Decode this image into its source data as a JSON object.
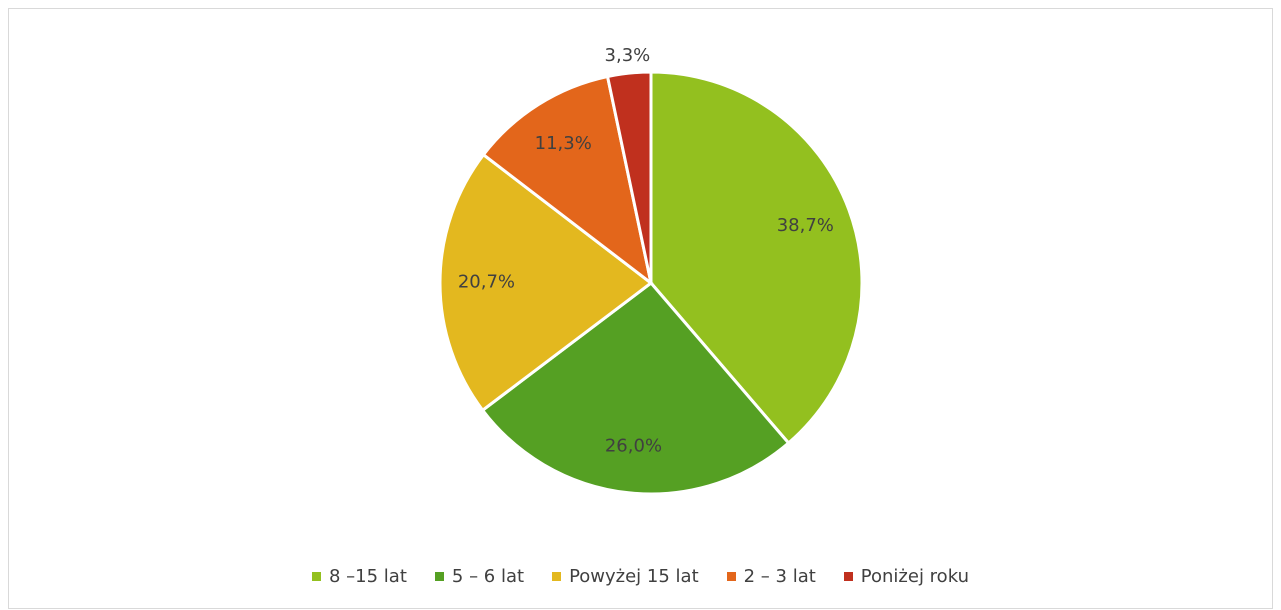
{
  "chart_data": {
    "type": "pie",
    "categories": [
      "8 –15 lat",
      "5 – 6 lat",
      "Powyżej 15 lat",
      "2 – 3 lat",
      "Poniżej roku"
    ],
    "values": [
      38.7,
      26.0,
      20.7,
      11.3,
      3.3
    ],
    "value_labels": [
      "38,7%",
      "26,0%",
      "20,7%",
      "11,3%",
      "3,3%"
    ],
    "colors": [
      "#93c01f",
      "#55a023",
      "#e3b81f",
      "#e3661b",
      "#c0301e"
    ],
    "legend": "bottom"
  }
}
